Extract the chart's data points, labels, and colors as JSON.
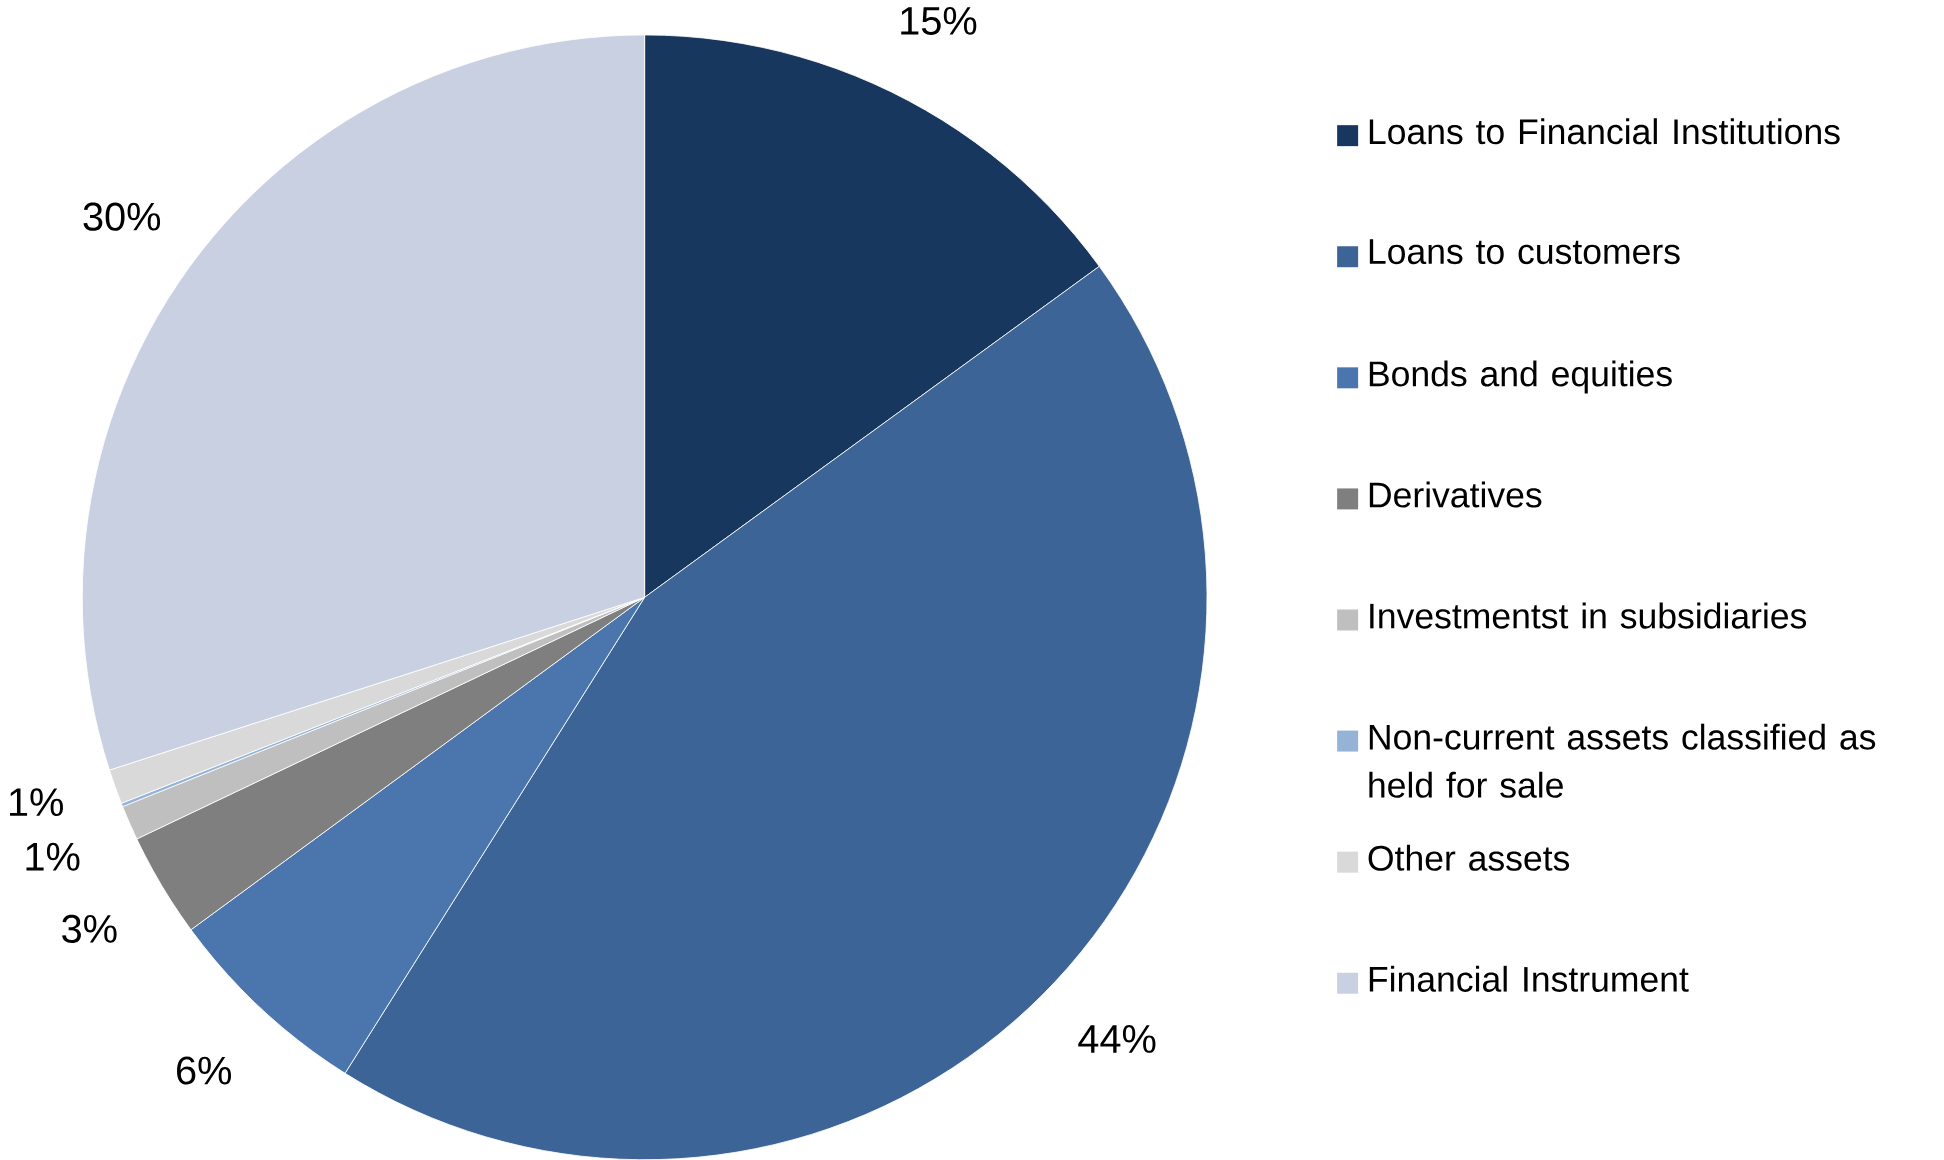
{
  "chart_data": {
    "type": "pie",
    "categories": [
      "Loans to Financial Institutions",
      "Loans to customers",
      "Bonds and equities",
      "Derivatives",
      "Investmentst in subsidiaries",
      "Non-current assets classified as held for sale",
      "Other assets",
      "Financial Instrument"
    ],
    "values": [
      15,
      44,
      6,
      3,
      1,
      0.1,
      1,
      30
    ],
    "value_labels": [
      "15%",
      "44%",
      "6%",
      "3%",
      "1%",
      null,
      "1%",
      "30%"
    ],
    "colors": [
      "#17375e",
      "#3c6496",
      "#4a76ad",
      "#7f7f7f",
      "#bfbfbf",
      "#95b3d7",
      "#d9d9d9",
      "#c8d0e2"
    ],
    "legend": "right"
  }
}
